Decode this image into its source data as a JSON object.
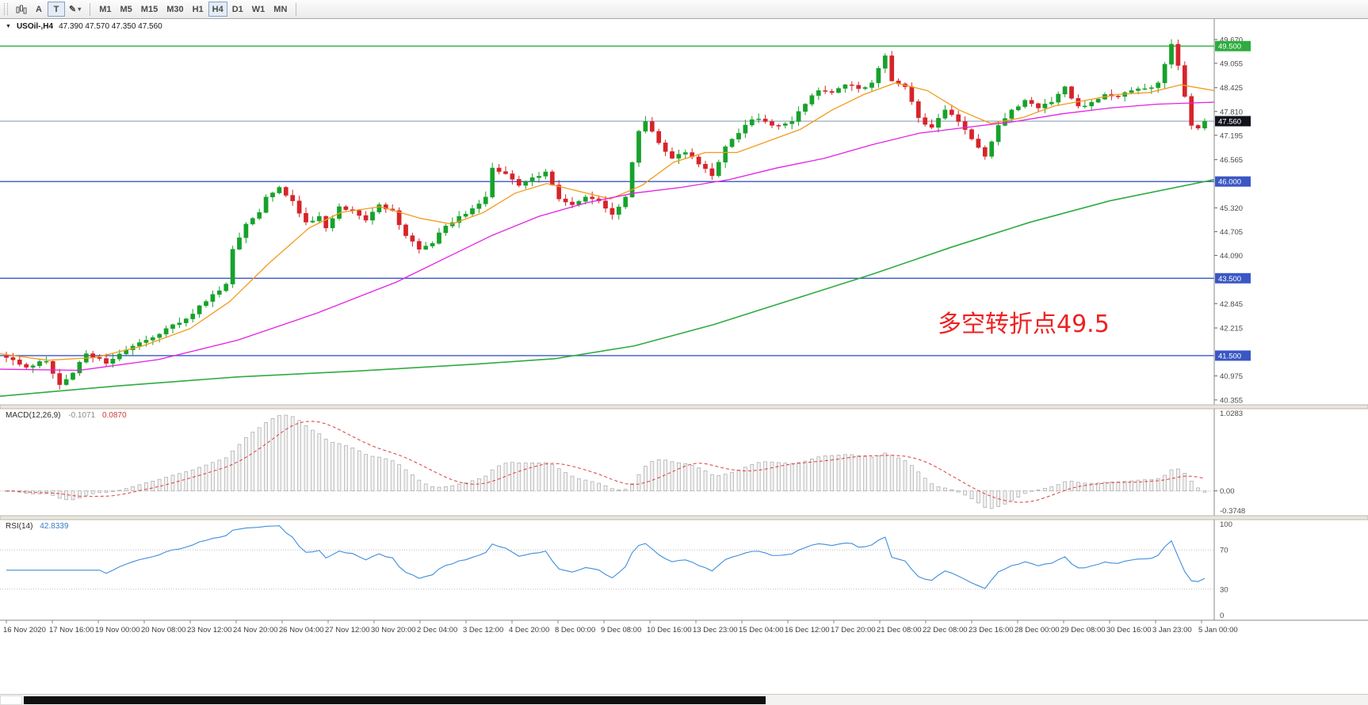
{
  "toolbar": {
    "tools": [
      {
        "label": "A",
        "active": false
      },
      {
        "label": "T",
        "active": true
      }
    ],
    "icons": {
      "pencil": "✎",
      "caret": "▾"
    },
    "timeframes": [
      {
        "label": "M1",
        "active": false
      },
      {
        "label": "M5",
        "active": false
      },
      {
        "label": "M15",
        "active": false
      },
      {
        "label": "M30",
        "active": false
      },
      {
        "label": "H1",
        "active": false
      },
      {
        "label": "H4",
        "active": true
      },
      {
        "label": "D1",
        "active": false
      },
      {
        "label": "W1",
        "active": false
      },
      {
        "label": "MN",
        "active": false
      }
    ]
  },
  "chart": {
    "dropdown_icon": "▼",
    "title": "USOil-,H4",
    "ohlc": "47.390 47.570 47.350 47.560",
    "annotation": {
      "text": "多空转折点49.5",
      "color": "#ee2222"
    }
  },
  "macd": {
    "label": "MACD(12,26,9)",
    "value_main": "-0.1071",
    "value_signal": "0.0870"
  },
  "rsi": {
    "label": "RSI(14)",
    "value": "42.8339"
  },
  "chart_data": {
    "type": "candlestick",
    "title": "USOil-,H4 47.390 47.570 47.350 47.560",
    "symbol": "USOil-",
    "timeframe": "H4",
    "ohlc_display": {
      "open": "47.390",
      "high": "47.570",
      "low": "47.350",
      "close": "47.560"
    },
    "price_axis": {
      "plot_max": 50.18,
      "plot_min": 40.25,
      "ticks": [
        49.67,
        49.055,
        48.425,
        47.81,
        47.195,
        46.565,
        45.32,
        44.705,
        44.09,
        42.845,
        42.215,
        40.975,
        40.355
      ]
    },
    "levels": [
      {
        "price": 49.5,
        "label": "49.500",
        "line_color": "#2eac3f",
        "badge_color": "#2eac3f",
        "current": false
      },
      {
        "price": 47.56,
        "label": "47.560",
        "line_color": "#8095b5",
        "badge_color": "#10131c",
        "current": true
      },
      {
        "price": 46.0,
        "label": "46.000",
        "line_color": "#3a57c4",
        "badge_color": "#3a57c4",
        "current": false
      },
      {
        "price": 43.5,
        "label": "43.500",
        "line_color": "#3a57c4",
        "badge_color": "#3a57c4",
        "current": false
      },
      {
        "price": 41.5,
        "label": "41.500",
        "line_color": "#3a57c4",
        "badge_color": "#3a57c4",
        "current": false
      }
    ],
    "candles": {
      "count": 181,
      "up_color": "#17a22b",
      "down_color": "#d6242b",
      "close_anchors": [
        [
          0,
          41.45
        ],
        [
          3,
          41.2
        ],
        [
          6,
          41.35
        ],
        [
          8,
          40.75
        ],
        [
          10,
          41.05
        ],
        [
          12,
          41.55
        ],
        [
          15,
          41.3
        ],
        [
          18,
          41.65
        ],
        [
          21,
          41.9
        ],
        [
          24,
          42.2
        ],
        [
          27,
          42.45
        ],
        [
          30,
          42.9
        ],
        [
          33,
          43.35
        ],
        [
          34,
          44.25
        ],
        [
          36,
          44.9
        ],
        [
          38,
          45.2
        ],
        [
          39,
          45.6
        ],
        [
          41,
          45.85
        ],
        [
          43,
          45.5
        ],
        [
          45,
          44.95
        ],
        [
          47,
          45.1
        ],
        [
          48,
          44.8
        ],
        [
          50,
          45.35
        ],
        [
          52,
          45.25
        ],
        [
          54,
          45.0
        ],
        [
          56,
          45.4
        ],
        [
          58,
          45.25
        ],
        [
          60,
          44.6
        ],
        [
          62,
          44.25
        ],
        [
          64,
          44.4
        ],
        [
          66,
          44.85
        ],
        [
          68,
          45.1
        ],
        [
          70,
          45.3
        ],
        [
          72,
          45.6
        ],
        [
          73,
          46.35
        ],
        [
          75,
          46.2
        ],
        [
          77,
          45.9
        ],
        [
          79,
          46.1
        ],
        [
          81,
          46.25
        ],
        [
          83,
          45.55
        ],
        [
          85,
          45.4
        ],
        [
          87,
          45.6
        ],
        [
          89,
          45.5
        ],
        [
          91,
          45.15
        ],
        [
          93,
          45.6
        ],
        [
          95,
          47.3
        ],
        [
          96,
          47.55
        ],
        [
          98,
          47.0
        ],
        [
          100,
          46.6
        ],
        [
          102,
          46.75
        ],
        [
          104,
          46.45
        ],
        [
          106,
          46.15
        ],
        [
          108,
          46.9
        ],
        [
          110,
          47.25
        ],
        [
          112,
          47.6
        ],
        [
          114,
          47.55
        ],
        [
          116,
          47.45
        ],
        [
          118,
          47.55
        ],
        [
          120,
          48.0
        ],
        [
          122,
          48.35
        ],
        [
          124,
          48.3
        ],
        [
          126,
          48.5
        ],
        [
          128,
          48.4
        ],
        [
          130,
          48.55
        ],
        [
          132,
          49.25
        ],
        [
          133,
          48.6
        ],
        [
          135,
          48.45
        ],
        [
          137,
          47.65
        ],
        [
          139,
          47.4
        ],
        [
          141,
          47.85
        ],
        [
          143,
          47.55
        ],
        [
          145,
          47.1
        ],
        [
          147,
          46.65
        ],
        [
          149,
          47.45
        ],
        [
          151,
          47.85
        ],
        [
          153,
          48.1
        ],
        [
          155,
          47.9
        ],
        [
          157,
          48.05
        ],
        [
          159,
          48.45
        ],
        [
          161,
          47.95
        ],
        [
          163,
          48.05
        ],
        [
          165,
          48.25
        ],
        [
          167,
          48.2
        ],
        [
          169,
          48.35
        ],
        [
          171,
          48.4
        ],
        [
          173,
          48.55
        ],
        [
          175,
          49.55
        ],
        [
          176,
          49.0
        ],
        [
          177,
          48.2
        ],
        [
          178,
          47.45
        ],
        [
          179,
          47.38
        ],
        [
          180,
          47.56
        ]
      ]
    },
    "moving_averages": [
      {
        "name": "ma-fast",
        "color": "#f29b1d",
        "points": [
          [
            0,
            41.55
          ],
          [
            60,
            41.38
          ],
          [
            120,
            41.45
          ],
          [
            180,
            41.75
          ],
          [
            240,
            42.2
          ],
          [
            290,
            42.9
          ],
          [
            340,
            43.9
          ],
          [
            390,
            44.8
          ],
          [
            430,
            45.2
          ],
          [
            480,
            45.35
          ],
          [
            530,
            45.05
          ],
          [
            570,
            44.9
          ],
          [
            610,
            45.2
          ],
          [
            650,
            45.7
          ],
          [
            690,
            45.95
          ],
          [
            730,
            45.75
          ],
          [
            770,
            45.55
          ],
          [
            810,
            45.9
          ],
          [
            850,
            46.5
          ],
          [
            890,
            46.75
          ],
          [
            930,
            46.75
          ],
          [
            970,
            47.05
          ],
          [
            1010,
            47.35
          ],
          [
            1050,
            47.85
          ],
          [
            1090,
            48.25
          ],
          [
            1130,
            48.55
          ],
          [
            1170,
            48.35
          ],
          [
            1210,
            47.85
          ],
          [
            1250,
            47.5
          ],
          [
            1290,
            47.65
          ],
          [
            1330,
            47.95
          ],
          [
            1370,
            48.1
          ],
          [
            1410,
            48.25
          ],
          [
            1450,
            48.3
          ],
          [
            1490,
            48.5
          ],
          [
            1532,
            48.35
          ]
        ]
      },
      {
        "name": "ma-mid",
        "color": "#e321e3",
        "points": [
          [
            0,
            41.15
          ],
          [
            100,
            41.12
          ],
          [
            200,
            41.4
          ],
          [
            300,
            41.9
          ],
          [
            400,
            42.6
          ],
          [
            500,
            43.4
          ],
          [
            560,
            44.0
          ],
          [
            620,
            44.6
          ],
          [
            680,
            45.1
          ],
          [
            740,
            45.45
          ],
          [
            800,
            45.7
          ],
          [
            860,
            45.85
          ],
          [
            920,
            46.05
          ],
          [
            980,
            46.35
          ],
          [
            1040,
            46.6
          ],
          [
            1100,
            46.95
          ],
          [
            1160,
            47.25
          ],
          [
            1220,
            47.4
          ],
          [
            1280,
            47.55
          ],
          [
            1340,
            47.75
          ],
          [
            1400,
            47.9
          ],
          [
            1460,
            48.0
          ],
          [
            1532,
            48.05
          ]
        ]
      },
      {
        "name": "ma-slow",
        "color": "#2eac3f",
        "points": [
          [
            0,
            40.45
          ],
          [
            150,
            40.72
          ],
          [
            300,
            40.95
          ],
          [
            450,
            41.1
          ],
          [
            600,
            41.28
          ],
          [
            700,
            41.42
          ],
          [
            800,
            41.75
          ],
          [
            900,
            42.3
          ],
          [
            1000,
            42.95
          ],
          [
            1100,
            43.6
          ],
          [
            1200,
            44.3
          ],
          [
            1300,
            44.95
          ],
          [
            1400,
            45.5
          ],
          [
            1532,
            46.05
          ]
        ]
      }
    ],
    "macd": {
      "params": "12,26,9",
      "fast": 12,
      "slow": 26,
      "signal": 9,
      "axis_labels": [
        "1.0283",
        "0.00",
        "-0.3748"
      ],
      "hist_fill": "#f2f2f2",
      "hist_stroke": "#a8a8a8",
      "signal_color": "#e03a3a"
    },
    "rsi": {
      "period": 14,
      "levels": [
        70,
        30
      ],
      "axis_labels": [
        "100",
        "70",
        "30",
        "0"
      ],
      "line_color": "#3f8ede"
    },
    "time_axis": {
      "labels": [
        "16 Nov 2020",
        "17 Nov 16:00",
        "19 Nov 00:00",
        "20 Nov 08:00",
        "23 Nov 12:00",
        "24 Nov 20:00",
        "26 Nov 04:00",
        "27 Nov 12:00",
        "30 Nov 20:00",
        "2 Dec 04:00",
        "3 Dec 12:00",
        "4 Dec 20:00",
        "8 Dec 00:00",
        "9 Dec 08:00",
        "10 Dec 16:00",
        "13 Dec 23:00",
        "15 Dec 04:00",
        "16 Dec 12:00",
        "17 Dec 20:00",
        "21 Dec 08:00",
        "22 Dec 08:00",
        "23 Dec 16:00",
        "28 Dec 00:00",
        "29 Dec 08:00",
        "30 Dec 16:00",
        "3 Jan 23:00",
        "5 Jan 00:00"
      ]
    }
  }
}
